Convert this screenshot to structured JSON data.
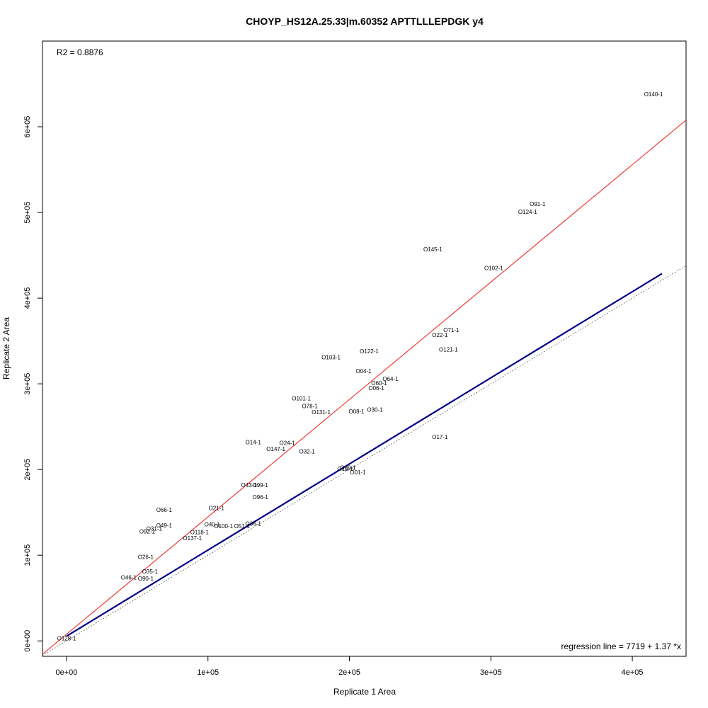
{
  "chart_data": {
    "type": "scatter",
    "title": "CHOYP_HS12A.25.33|m.60352 APTTLLLEPDGK y4",
    "xlabel": "Replicate 1 Area",
    "ylabel": "Replicate 2 Area",
    "xlim": [
      -17000,
      438000
    ],
    "ylim": [
      -18000,
      700000
    ],
    "x_ticks": [
      {
        "value": 0,
        "label": "0e+00"
      },
      {
        "value": 100000,
        "label": "1e+05"
      },
      {
        "value": 200000,
        "label": "2e+05"
      },
      {
        "value": 300000,
        "label": "3e+05"
      },
      {
        "value": 400000,
        "label": "4e+05"
      }
    ],
    "y_ticks": [
      {
        "value": 0,
        "label": "0e+00"
      },
      {
        "value": 100000,
        "label": "1e+05"
      },
      {
        "value": 200000,
        "label": "2e+05"
      },
      {
        "value": 300000,
        "label": "3e+05"
      },
      {
        "value": 400000,
        "label": "4e+05"
      },
      {
        "value": 500000,
        "label": "5e+05"
      },
      {
        "value": 600000,
        "label": "6e+05"
      }
    ],
    "grid": false,
    "r2_text": "R2 = 0.8876",
    "regression_text": "regression line = 7719 + 1.37 *x",
    "regression_line": {
      "intercept": 7719,
      "slope": 1.37,
      "color": "#ee3b3b"
    },
    "fit_line": {
      "x_start": 0,
      "x_end": 421000,
      "intercept": 5500,
      "slope": 1.005,
      "color": "#00008b"
    },
    "identity_line": {
      "intercept": 0,
      "slope": 1,
      "color": "#555555"
    },
    "points": [
      {
        "label": "O140-1",
        "x": 415000,
        "y": 638000
      },
      {
        "label": "O91-1",
        "x": 333000,
        "y": 510000
      },
      {
        "label": "O124-1",
        "x": 326000,
        "y": 501000
      },
      {
        "label": "O145-1",
        "x": 259000,
        "y": 457000
      },
      {
        "label": "O102-1",
        "x": 302000,
        "y": 435000
      },
      {
        "label": "O71-1",
        "x": 272000,
        "y": 363000
      },
      {
        "label": "O22-1",
        "x": 264000,
        "y": 357000
      },
      {
        "label": "O121-1",
        "x": 270000,
        "y": 340000
      },
      {
        "label": "O122-1",
        "x": 214000,
        "y": 338000
      },
      {
        "label": "O103-1",
        "x": 187000,
        "y": 331000
      },
      {
        "label": "O04-1",
        "x": 210000,
        "y": 315000
      },
      {
        "label": "O64-1",
        "x": 229000,
        "y": 306000
      },
      {
        "label": "O60-1",
        "x": 221000,
        "y": 301000
      },
      {
        "label": "O06-1",
        "x": 219000,
        "y": 295000
      },
      {
        "label": "O101-1",
        "x": 166000,
        "y": 283000
      },
      {
        "label": "O78-1",
        "x": 172000,
        "y": 274000
      },
      {
        "label": "O131-1",
        "x": 180000,
        "y": 267000
      },
      {
        "label": "O08-1",
        "x": 205000,
        "y": 268000
      },
      {
        "label": "O30-1",
        "x": 218000,
        "y": 270000
      },
      {
        "label": "O17-1",
        "x": 264000,
        "y": 238000
      },
      {
        "label": "O14-1",
        "x": 132000,
        "y": 232000
      },
      {
        "label": "O24-1",
        "x": 156000,
        "y": 231000
      },
      {
        "label": "O147-1",
        "x": 148000,
        "y": 224000
      },
      {
        "label": "O32-1",
        "x": 170000,
        "y": 221000
      },
      {
        "label": "O19-1",
        "x": 199000,
        "y": 202000
      },
      {
        "label": "O19-1",
        "x": 197000,
        "y": 201000
      },
      {
        "label": "O01-1",
        "x": 206000,
        "y": 197000
      },
      {
        "label": "O43-1",
        "x": 129000,
        "y": 182000
      },
      {
        "label": "O99-1",
        "x": 137000,
        "y": 182000
      },
      {
        "label": "O96-1",
        "x": 137000,
        "y": 168000
      },
      {
        "label": "O66-1",
        "x": 69000,
        "y": 153000
      },
      {
        "label": "O21-1",
        "x": 106000,
        "y": 155000
      },
      {
        "label": "O49-1",
        "x": 69000,
        "y": 135000
      },
      {
        "label": "O40-1",
        "x": 103000,
        "y": 136000
      },
      {
        "label": "O100-1",
        "x": 111000,
        "y": 134000
      },
      {
        "label": "O51-1",
        "x": 124000,
        "y": 134000
      },
      {
        "label": "O36-1",
        "x": 132000,
        "y": 137000
      },
      {
        "label": "O31-1",
        "x": 62000,
        "y": 131000
      },
      {
        "label": "O92-1",
        "x": 57000,
        "y": 128000
      },
      {
        "label": "O118-1",
        "x": 94000,
        "y": 127000
      },
      {
        "label": "O137-1",
        "x": 89000,
        "y": 120000
      },
      {
        "label": "O26-1",
        "x": 56000,
        "y": 98000
      },
      {
        "label": "O35-1",
        "x": 59000,
        "y": 81000
      },
      {
        "label": "O46-1",
        "x": 44000,
        "y": 74000
      },
      {
        "label": "O90-1",
        "x": 56000,
        "y": 73000
      },
      {
        "label": "O128-1",
        "x": 0,
        "y": 3000
      }
    ]
  }
}
